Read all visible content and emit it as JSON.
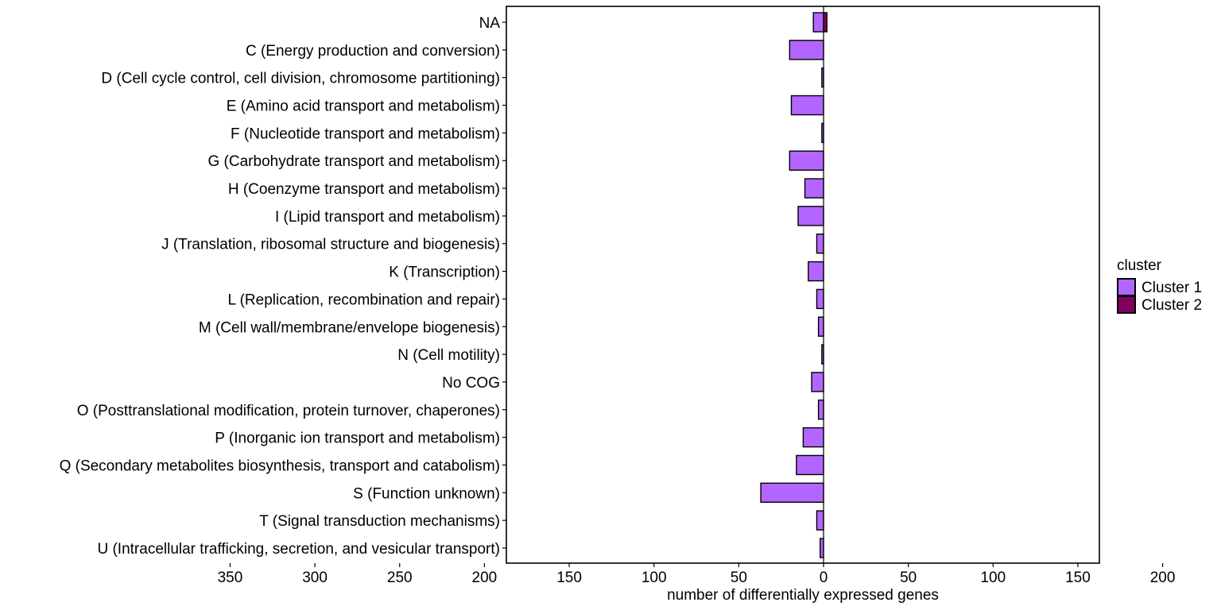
{
  "chart_data": {
    "type": "bar",
    "orientation": "horizontal",
    "title": "",
    "xlabel": "number of differentially expressed genes",
    "ylabel": "",
    "xlim": [
      -375,
      325
    ],
    "x_ticks": [
      -350,
      -300,
      -250,
      -200,
      -150,
      -100,
      -50,
      0,
      50,
      100,
      150,
      200,
      250,
      300
    ],
    "x_tick_labels": [
      "350",
      "300",
      "250",
      "200",
      "150",
      "100",
      "50",
      "0",
      "50",
      "100",
      "150",
      "200",
      "250",
      "300"
    ],
    "grid": false,
    "legend_position": "right",
    "legend_title": "cluster",
    "categories": [
      "NA",
      "C (Energy production and conversion)",
      "D (Cell cycle control, cell division, chromosome partitioning)",
      "E (Amino acid transport and metabolism)",
      "F (Nucleotide transport and metabolism)",
      "G (Carbohydrate transport and metabolism)",
      "H (Coenzyme transport and metabolism)",
      "I (Lipid transport and metabolism)",
      "J (Translation,  ribosomal structure and biogenesis)",
      "K (Transcription)",
      "L (Replication, recombination and repair)",
      "M (Cell wall/membrane/envelope biogenesis)",
      "N (Cell motility)",
      "No COG",
      "O (Posttranslational modification, protein turnover, chaperones)",
      "P (Inorganic ion transport and metabolism)",
      "Q (Secondary metabolites biosynthesis, transport and catabolism)",
      "S (Function unknown)",
      "T (Signal transduction mechanisms)",
      "U (Intracellular trafficking, secretion, and vesicular transport)"
    ],
    "series": [
      {
        "name": "Cluster 1",
        "color": "#b266ff",
        "values": [
          -6,
          -20,
          -1,
          -19,
          -1,
          -20,
          -11,
          -15,
          -4,
          -9,
          -4,
          -3,
          -1,
          -7,
          -3,
          -12,
          -16,
          -37,
          -4,
          -2
        ]
      },
      {
        "name": "Cluster 2",
        "color": "#7f0060",
        "values": [
          2,
          0,
          0,
          0,
          0,
          0,
          0,
          0,
          0,
          0,
          0,
          0,
          0,
          0,
          0,
          0,
          0,
          0,
          0,
          0
        ]
      }
    ]
  }
}
